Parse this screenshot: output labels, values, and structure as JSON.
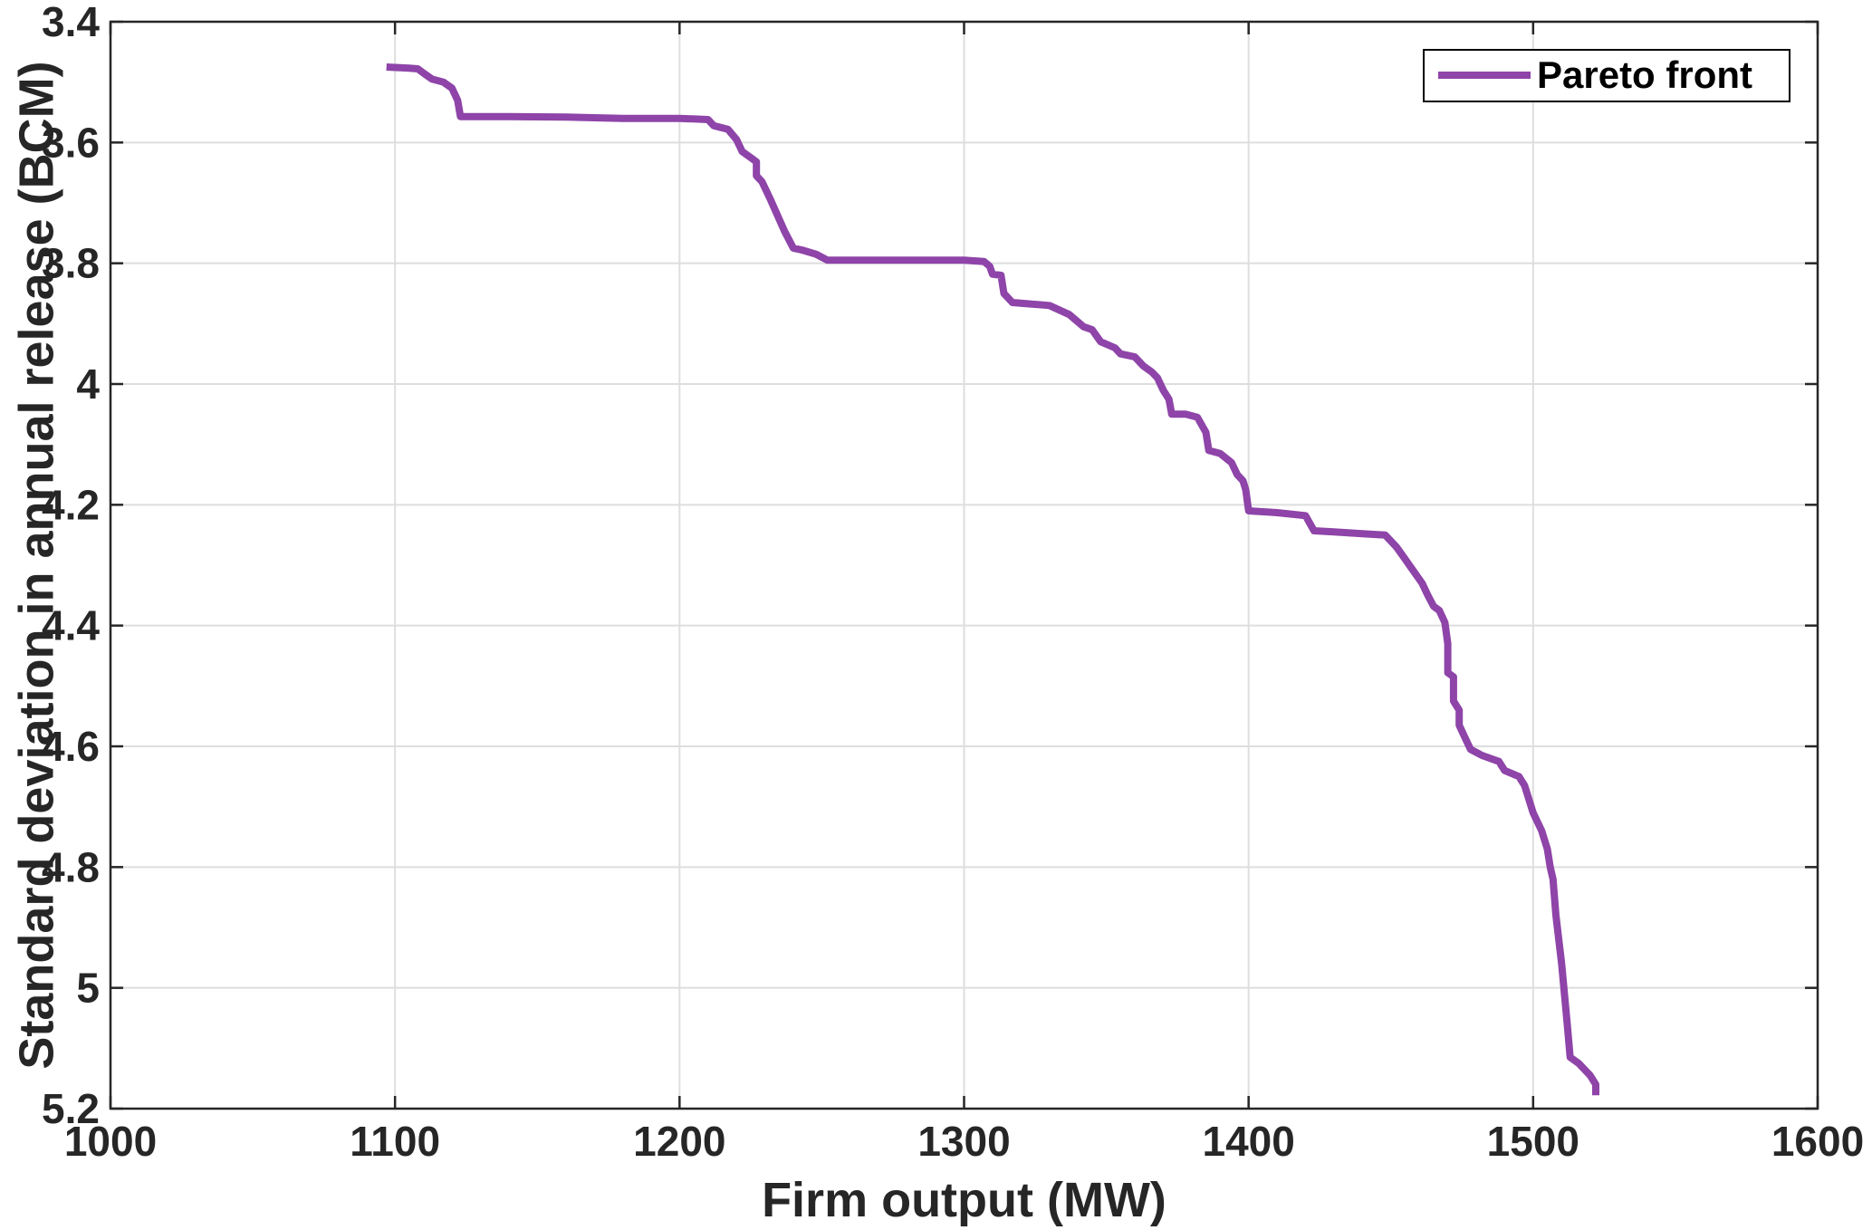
{
  "chart_data": {
    "type": "line",
    "xlabel": "Firm output (MW)",
    "ylabel": "Standard deviation in annual release (BCM)",
    "xlim": [
      1000,
      1600
    ],
    "ylim": [
      3.4,
      5.2
    ],
    "y_reversed": true,
    "xticks": [
      1000,
      1100,
      1200,
      1300,
      1400,
      1500,
      1600
    ],
    "yticks": [
      3.4,
      3.6,
      3.8,
      4,
      4.2,
      4.4,
      4.6,
      4.8,
      5,
      5.2
    ],
    "xtick_labels": [
      "1000",
      "1100",
      "1200",
      "1300",
      "1400",
      "1500",
      "1600"
    ],
    "ytick_labels": [
      "3.4",
      "3.6",
      "3.8",
      "4",
      "4.2",
      "4.4",
      "4.6",
      "4.8",
      "5",
      "5.2"
    ],
    "grid": true,
    "legend_position": "top-right",
    "series": [
      {
        "name": "Pareto front",
        "color": "#8e44a8",
        "points": [
          [
            1097,
            3.475
          ],
          [
            1105,
            3.477
          ],
          [
            1108,
            3.478
          ],
          [
            1110,
            3.485
          ],
          [
            1113,
            3.495
          ],
          [
            1117,
            3.5
          ],
          [
            1120,
            3.51
          ],
          [
            1122,
            3.53
          ],
          [
            1123,
            3.557
          ],
          [
            1140,
            3.557
          ],
          [
            1160,
            3.558
          ],
          [
            1180,
            3.56
          ],
          [
            1200,
            3.56
          ],
          [
            1210,
            3.562
          ],
          [
            1212,
            3.572
          ],
          [
            1217,
            3.578
          ],
          [
            1220,
            3.595
          ],
          [
            1222,
            3.615
          ],
          [
            1225,
            3.625
          ],
          [
            1227,
            3.632
          ],
          [
            1227,
            3.655
          ],
          [
            1229,
            3.665
          ],
          [
            1232,
            3.695
          ],
          [
            1237,
            3.748
          ],
          [
            1240,
            3.775
          ],
          [
            1243,
            3.778
          ],
          [
            1248,
            3.785
          ],
          [
            1252,
            3.795
          ],
          [
            1270,
            3.795
          ],
          [
            1290,
            3.795
          ],
          [
            1300,
            3.795
          ],
          [
            1307,
            3.797
          ],
          [
            1309,
            3.805
          ],
          [
            1310,
            3.818
          ],
          [
            1313,
            3.82
          ],
          [
            1314,
            3.85
          ],
          [
            1317,
            3.865
          ],
          [
            1330,
            3.87
          ],
          [
            1337,
            3.885
          ],
          [
            1342,
            3.905
          ],
          [
            1345,
            3.91
          ],
          [
            1348,
            3.93
          ],
          [
            1353,
            3.94
          ],
          [
            1355,
            3.95
          ],
          [
            1360,
            3.955
          ],
          [
            1363,
            3.97
          ],
          [
            1366,
            3.98
          ],
          [
            1368,
            3.99
          ],
          [
            1370,
            4.01
          ],
          [
            1372,
            4.025
          ],
          [
            1373,
            4.05
          ],
          [
            1378,
            4.05
          ],
          [
            1382,
            4.055
          ],
          [
            1385,
            4.08
          ],
          [
            1386,
            4.11
          ],
          [
            1390,
            4.115
          ],
          [
            1394,
            4.13
          ],
          [
            1396,
            4.15
          ],
          [
            1398,
            4.16
          ],
          [
            1399,
            4.175
          ],
          [
            1400,
            4.21
          ],
          [
            1410,
            4.213
          ],
          [
            1420,
            4.218
          ],
          [
            1423,
            4.243
          ],
          [
            1430,
            4.245
          ],
          [
            1440,
            4.248
          ],
          [
            1448,
            4.25
          ],
          [
            1452,
            4.27
          ],
          [
            1455,
            4.29
          ],
          [
            1458,
            4.31
          ],
          [
            1461,
            4.33
          ],
          [
            1463,
            4.35
          ],
          [
            1465,
            4.368
          ],
          [
            1467,
            4.375
          ],
          [
            1469,
            4.395
          ],
          [
            1470,
            4.43
          ],
          [
            1470,
            4.478
          ],
          [
            1472,
            4.485
          ],
          [
            1472,
            4.525
          ],
          [
            1474,
            4.54
          ],
          [
            1474,
            4.565
          ],
          [
            1476,
            4.585
          ],
          [
            1478,
            4.605
          ],
          [
            1482,
            4.615
          ],
          [
            1488,
            4.625
          ],
          [
            1490,
            4.64
          ],
          [
            1495,
            4.65
          ],
          [
            1497,
            4.665
          ],
          [
            1500,
            4.71
          ],
          [
            1503,
            4.74
          ],
          [
            1505,
            4.77
          ],
          [
            1506,
            4.8
          ],
          [
            1507,
            4.82
          ],
          [
            1508,
            4.88
          ],
          [
            1510,
            4.96
          ],
          [
            1512,
            5.06
          ],
          [
            1513,
            5.115
          ],
          [
            1516,
            5.125
          ],
          [
            1520,
            5.145
          ],
          [
            1522,
            5.16
          ],
          [
            1522,
            5.178
          ]
        ]
      }
    ]
  }
}
